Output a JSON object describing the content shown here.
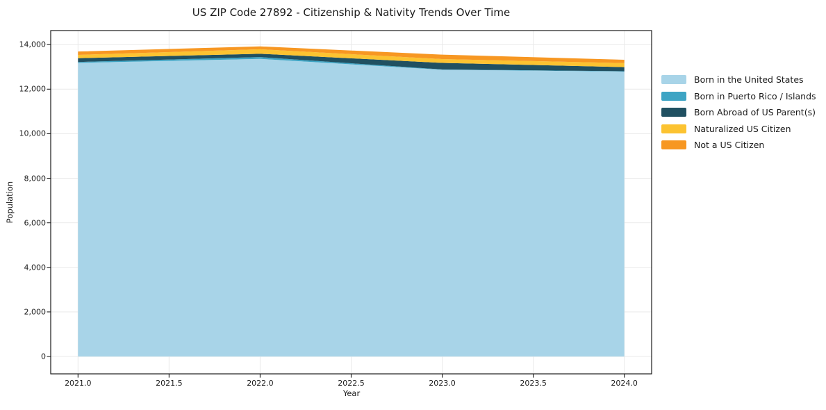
{
  "chart_data": {
    "type": "area",
    "stacked": true,
    "title": "US ZIP Code 27892 - Citizenship & Nativity Trends Over Time",
    "xlabel": "Year",
    "ylabel": "Population",
    "x": [
      2021,
      2022,
      2023,
      2024
    ],
    "series": [
      {
        "name": "Born in the United States",
        "color": "#a8d4e8",
        "values": [
          13180,
          13360,
          12870,
          12790
        ]
      },
      {
        "name": "Born in Puerto Rico / Islands",
        "color": "#3da4c4",
        "values": [
          40,
          80,
          15,
          15
        ]
      },
      {
        "name": "Born Abroad of US Parent(s)",
        "color": "#205061",
        "values": [
          170,
          150,
          295,
          185
        ]
      },
      {
        "name": "Naturalized US Citizen",
        "color": "#fcc331",
        "values": [
          150,
          200,
          170,
          180
        ]
      },
      {
        "name": "Not a US Citizen",
        "color": "#f79722",
        "values": [
          150,
          130,
          200,
          150
        ]
      }
    ],
    "totals": [
      13690,
      13920,
      13550,
      13320
    ],
    "xlim": [
      2020.85,
      2024.15
    ],
    "ylim": [
      -780,
      14630
    ],
    "x_tick_values": [
      2021.0,
      2021.5,
      2022.0,
      2022.5,
      2023.0,
      2023.5,
      2024.0
    ],
    "x_tick_labels": [
      "2021.0",
      "2021.5",
      "2022.0",
      "2022.5",
      "2023.0",
      "2023.5",
      "2024.0"
    ],
    "y_tick_values": [
      0,
      2000,
      4000,
      6000,
      8000,
      10000,
      12000,
      14000
    ],
    "y_tick_labels": [
      "0",
      "2,000",
      "4,000",
      "6,000",
      "8,000",
      "10,000",
      "12,000",
      "14,000"
    ],
    "grid": true,
    "legend_position": "outside-right",
    "colors": {
      "background": "#ffffff",
      "grid": "#e9e9e9",
      "frame": "#1a1a1a",
      "text": "#1a1a1a"
    }
  }
}
